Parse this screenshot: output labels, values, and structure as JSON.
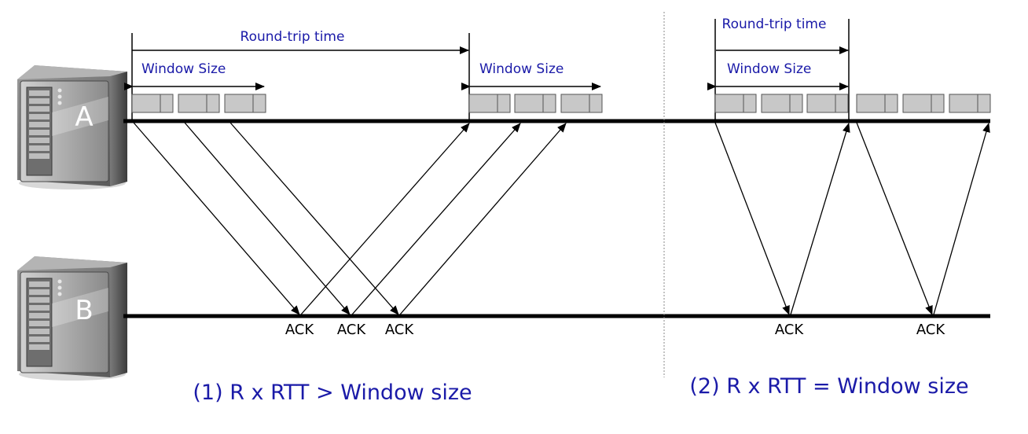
{
  "hosts": {
    "a_label": "A",
    "b_label": "B"
  },
  "labels": {
    "rtt_left": "Round-trip time",
    "rtt_right": "Round-trip time",
    "window_left_1": "Window Size",
    "window_left_2": "Window Size",
    "window_right": "Window Size"
  },
  "acks": {
    "left": [
      "ACK",
      "ACK",
      "ACK"
    ],
    "right": [
      "ACK",
      "ACK"
    ]
  },
  "captions": {
    "case1": "(1) R x RTT > Window size",
    "case2": "(2) R x RTT = Window size"
  },
  "colors": {
    "label_blue": "#1a1aa8",
    "packet_fill": "#c8c8c8",
    "server_dark": "#5a5a5a"
  }
}
